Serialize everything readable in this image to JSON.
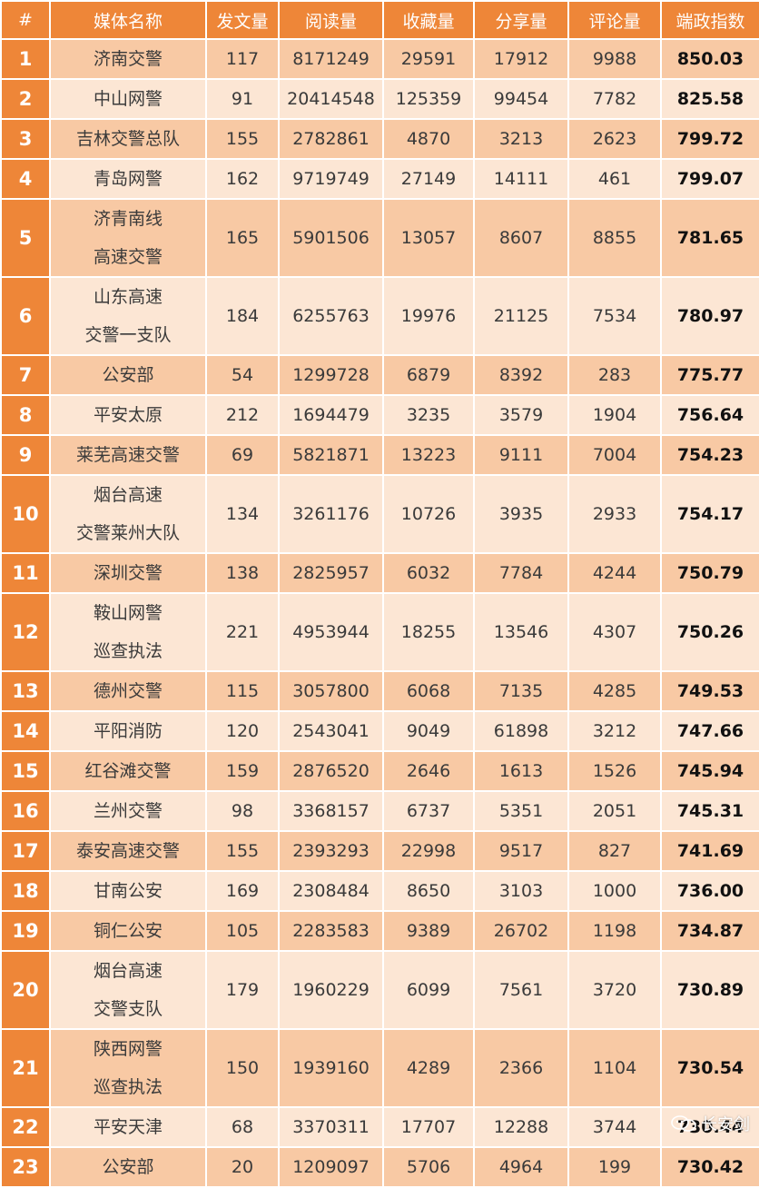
{
  "headers": [
    "#",
    "媒体名称",
    "发文量",
    "阅读量",
    "收藏量",
    "分享量",
    "评论量",
    "端政指数"
  ],
  "rows": [
    {
      "rank": "1",
      "name": [
        "济南交警"
      ],
      "posts": "117",
      "reads": "8171249",
      "favs": "29591",
      "shares": "17912",
      "comments": "9988",
      "score": "850.03"
    },
    {
      "rank": "2",
      "name": [
        "中山网警"
      ],
      "posts": "91",
      "reads": "20414548",
      "favs": "125359",
      "shares": "99454",
      "comments": "7782",
      "score": "825.58"
    },
    {
      "rank": "3",
      "name": [
        "吉林交警总队"
      ],
      "posts": "155",
      "reads": "2782861",
      "favs": "4870",
      "shares": "3213",
      "comments": "2623",
      "score": "799.72"
    },
    {
      "rank": "4",
      "name": [
        "青岛网警"
      ],
      "posts": "162",
      "reads": "9719749",
      "favs": "27149",
      "shares": "14111",
      "comments": "461",
      "score": "799.07"
    },
    {
      "rank": "5",
      "name": [
        "济青南线",
        "高速交警"
      ],
      "posts": "165",
      "reads": "5901506",
      "favs": "13057",
      "shares": "8607",
      "comments": "8855",
      "score": "781.65"
    },
    {
      "rank": "6",
      "name": [
        "山东高速",
        "交警一支队"
      ],
      "posts": "184",
      "reads": "6255763",
      "favs": "19976",
      "shares": "21125",
      "comments": "7534",
      "score": "780.97"
    },
    {
      "rank": "7",
      "name": [
        "公安部"
      ],
      "posts": "54",
      "reads": "1299728",
      "favs": "6879",
      "shares": "8392",
      "comments": "283",
      "score": "775.77"
    },
    {
      "rank": "8",
      "name": [
        "平安太原"
      ],
      "posts": "212",
      "reads": "1694479",
      "favs": "3235",
      "shares": "3579",
      "comments": "1904",
      "score": "756.64"
    },
    {
      "rank": "9",
      "name": [
        "莱芜高速交警"
      ],
      "posts": "69",
      "reads": "5821871",
      "favs": "13223",
      "shares": "9111",
      "comments": "7004",
      "score": "754.23"
    },
    {
      "rank": "10",
      "name": [
        "烟台高速",
        "交警莱州大队"
      ],
      "posts": "134",
      "reads": "3261176",
      "favs": "10726",
      "shares": "3935",
      "comments": "2933",
      "score": "754.17"
    },
    {
      "rank": "11",
      "name": [
        "深圳交警"
      ],
      "posts": "138",
      "reads": "2825957",
      "favs": "6032",
      "shares": "7784",
      "comments": "4244",
      "score": "750.79"
    },
    {
      "rank": "12",
      "name": [
        "鞍山网警",
        "巡查执法"
      ],
      "posts": "221",
      "reads": "4953944",
      "favs": "18255",
      "shares": "13546",
      "comments": "4307",
      "score": "750.26"
    },
    {
      "rank": "13",
      "name": [
        "德州交警"
      ],
      "posts": "115",
      "reads": "3057800",
      "favs": "6068",
      "shares": "7135",
      "comments": "4285",
      "score": "749.53"
    },
    {
      "rank": "14",
      "name": [
        "平阳消防"
      ],
      "posts": "120",
      "reads": "2543041",
      "favs": "9049",
      "shares": "61898",
      "comments": "3212",
      "score": "747.66"
    },
    {
      "rank": "15",
      "name": [
        "红谷滩交警"
      ],
      "posts": "159",
      "reads": "2876520",
      "favs": "2646",
      "shares": "1613",
      "comments": "1526",
      "score": "745.94"
    },
    {
      "rank": "16",
      "name": [
        "兰州交警"
      ],
      "posts": "98",
      "reads": "3368157",
      "favs": "6737",
      "shares": "5351",
      "comments": "2051",
      "score": "745.31"
    },
    {
      "rank": "17",
      "name": [
        "泰安高速交警"
      ],
      "posts": "155",
      "reads": "2393293",
      "favs": "22998",
      "shares": "9517",
      "comments": "827",
      "score": "741.69"
    },
    {
      "rank": "18",
      "name": [
        "甘南公安"
      ],
      "posts": "169",
      "reads": "2308484",
      "favs": "8650",
      "shares": "3103",
      "comments": "1000",
      "score": "736.00"
    },
    {
      "rank": "19",
      "name": [
        "铜仁公安"
      ],
      "posts": "105",
      "reads": "2283583",
      "favs": "9389",
      "shares": "26702",
      "comments": "1198",
      "score": "734.87"
    },
    {
      "rank": "20",
      "name": [
        "烟台高速",
        "交警支队"
      ],
      "posts": "179",
      "reads": "1960229",
      "favs": "6099",
      "shares": "7561",
      "comments": "3720",
      "score": "730.89"
    },
    {
      "rank": "21",
      "name": [
        "陕西网警",
        "巡查执法"
      ],
      "posts": "150",
      "reads": "1939160",
      "favs": "4289",
      "shares": "2366",
      "comments": "1104",
      "score": "730.54"
    },
    {
      "rank": "22",
      "name": [
        "平安天津"
      ],
      "posts": "68",
      "reads": "3370311",
      "favs": "17707",
      "shares": "12288",
      "comments": "3744",
      "score": "730.44"
    },
    {
      "rank": "23",
      "name": [
        "公安部"
      ],
      "posts": "20",
      "reads": "1209097",
      "favs": "5706",
      "shares": "4964",
      "comments": "199",
      "score": "730.42"
    }
  ],
  "watermark": {
    "text": "长安剑",
    "icon": "wechat-icon"
  },
  "colors": {
    "header_bg": "#ee8638",
    "row_dark": "#f8c9a4",
    "row_light": "#fce6d4",
    "text": "#3a3a3a"
  }
}
